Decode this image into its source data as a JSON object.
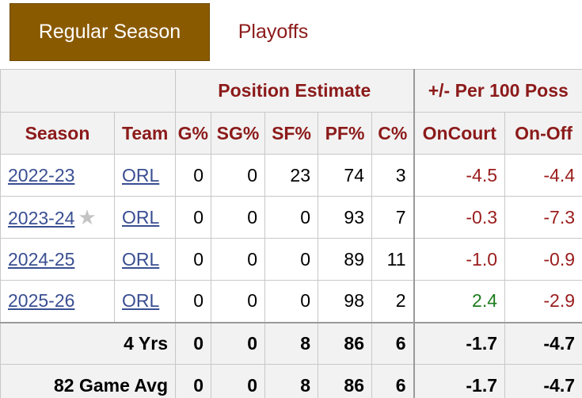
{
  "tabs": {
    "regular_season": "Regular Season",
    "playoffs": "Playoffs"
  },
  "header": {
    "group_position": "Position Estimate",
    "group_plusminus": "+/- Per 100 Poss",
    "season": "Season",
    "team": "Team",
    "pg_pct": "G%",
    "sg_pct": "SG%",
    "sf_pct": "SF%",
    "pf_pct": "PF%",
    "c_pct": "C%",
    "oncourt": "OnCourt",
    "onoff": "On-Off"
  },
  "rows": [
    {
      "season": "2022-23",
      "star": false,
      "team": "ORL",
      "pg": "0",
      "sg": "0",
      "sf": "23",
      "pf": "74",
      "c": "3",
      "oncourt": "-4.5",
      "onoff": "-4.4",
      "oncourt_color": "#9b1c1c"
    },
    {
      "season": "2023-24",
      "star": true,
      "team": "ORL",
      "pg": "0",
      "sg": "0",
      "sf": "0",
      "pf": "93",
      "c": "7",
      "oncourt": "-0.3",
      "onoff": "-7.3",
      "oncourt_color": "#9b1c1c"
    },
    {
      "season": "2024-25",
      "star": false,
      "team": "ORL",
      "pg": "0",
      "sg": "0",
      "sf": "0",
      "pf": "89",
      "c": "11",
      "oncourt": "-1.0",
      "onoff": "-0.9",
      "oncourt_color": "#9b1c1c"
    },
    {
      "season": "2025-26",
      "star": false,
      "team": "ORL",
      "pg": "0",
      "sg": "0",
      "sf": "0",
      "pf": "98",
      "c": "2",
      "oncourt": "2.4",
      "onoff": "-2.9",
      "oncourt_color": "#1e7c1e"
    }
  ],
  "star_glyph": "★",
  "footer": [
    {
      "label": "4 Yrs",
      "pg": "0",
      "sg": "0",
      "sf": "8",
      "pf": "86",
      "c": "6",
      "oncourt": "-1.7",
      "onoff": "-4.7"
    },
    {
      "label": "82 Game Avg",
      "pg": "0",
      "sg": "0",
      "sf": "8",
      "pf": "86",
      "c": "6",
      "oncourt": "-1.7",
      "onoff": "-4.7"
    }
  ]
}
